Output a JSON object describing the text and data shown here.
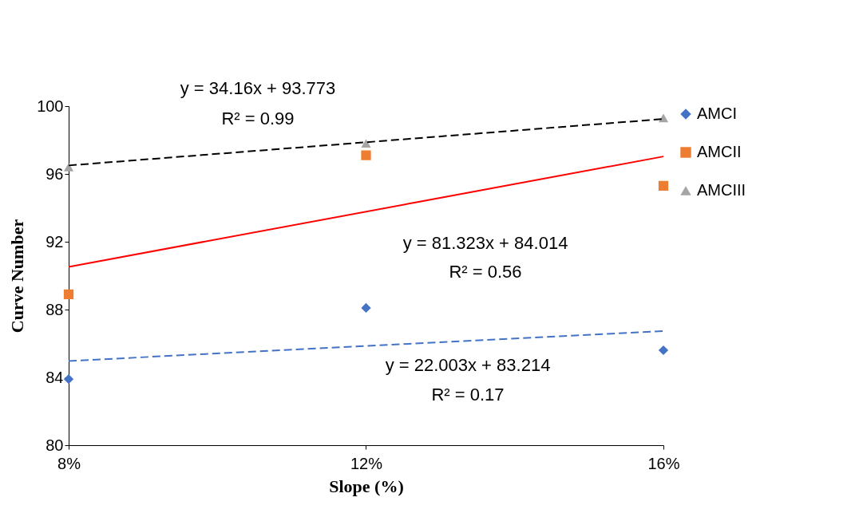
{
  "chart_data": {
    "type": "scatter",
    "xlabel": "Slope (%)",
    "ylabel": "Curve Number",
    "xlim": [
      0.08,
      0.16
    ],
    "xticks": [
      {
        "value": 0.08,
        "label": "8%"
      },
      {
        "value": 0.12,
        "label": "12%"
      },
      {
        "value": 0.16,
        "label": "16%"
      }
    ],
    "ylim": [
      80,
      100
    ],
    "yticks": [
      80,
      84,
      88,
      92,
      96,
      100
    ],
    "grid": false,
    "legend": "right",
    "series": [
      {
        "name": "AMCI",
        "color": "#4472c4",
        "marker": "diamond",
        "x": [
          0.08,
          0.12,
          0.16
        ],
        "values": [
          83.9,
          88.1,
          85.6
        ]
      },
      {
        "name": "AMCII",
        "color": "#ed7d31",
        "marker": "square",
        "x": [
          0.08,
          0.12,
          0.16
        ],
        "values": [
          88.9,
          97.1,
          95.3
        ]
      },
      {
        "name": "AMCIII",
        "color": "#a5a5a5",
        "marker": "triangle",
        "x": [
          0.08,
          0.12,
          0.16
        ],
        "values": [
          96.4,
          97.8,
          99.3
        ]
      },
      {
        "type": "line",
        "color": "#4472c4",
        "line_style": "dashed",
        "x": [
          0.08,
          0.16
        ],
        "values": [
          84.97,
          86.73
        ]
      },
      {
        "type": "line",
        "color": "#ff0000",
        "line_style": "solid",
        "x": [
          0.08,
          0.16
        ],
        "values": [
          90.52,
          97.03
        ]
      },
      {
        "type": "line",
        "color": "#000000",
        "line_style": "dashed",
        "x": [
          0.08,
          0.16
        ],
        "values": [
          96.5,
          99.24
        ]
      }
    ],
    "annotations": [
      "y = 34.16x + 93.773",
      "R² = 0.99",
      "y = 81.323x + 84.014",
      "R² = 0.56",
      "y = 22.003x + 83.214",
      "R² = 0.17"
    ]
  }
}
